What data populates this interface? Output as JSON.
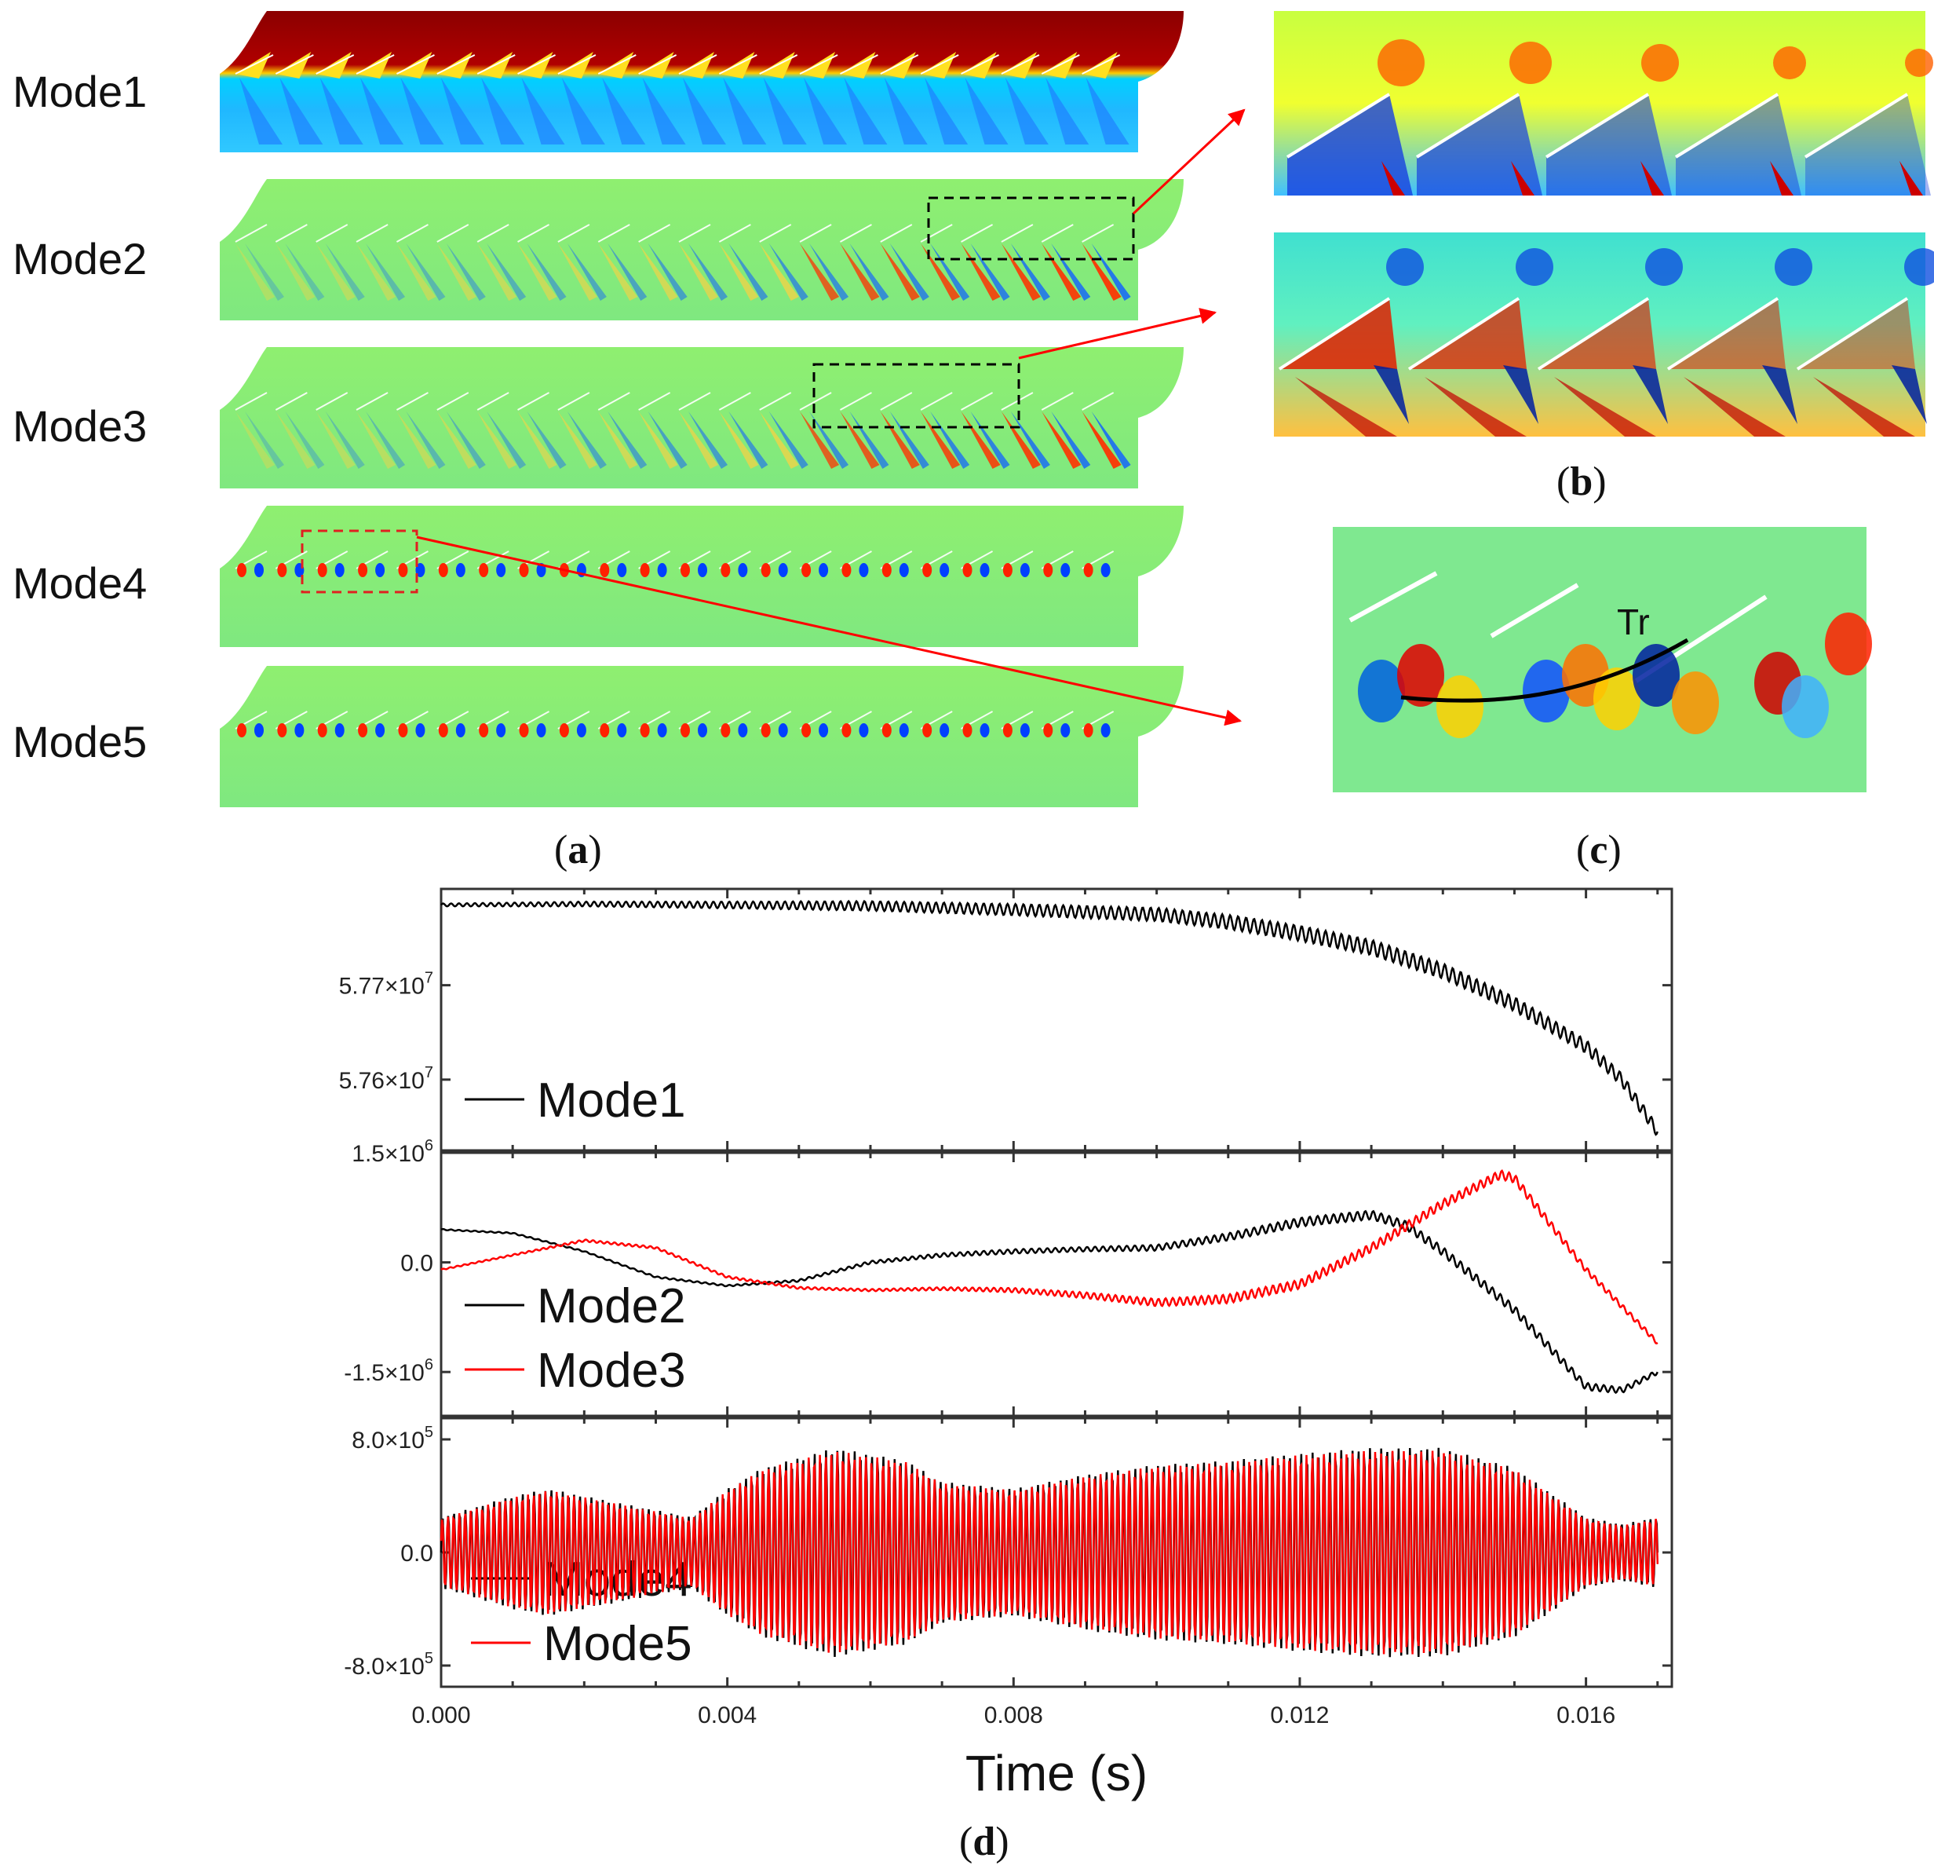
{
  "panel_a": {
    "caption": "a",
    "modes": [
      "Mode1",
      "Mode2",
      "Mode3",
      "Mode4",
      "Mode5"
    ]
  },
  "panel_b": {
    "caption": "b"
  },
  "panel_c": {
    "caption": "c",
    "annotation": "Tr"
  },
  "panel_d": {
    "caption": "d"
  },
  "colors": {
    "jet_low": "#00008f",
    "jet_mid": "#7fff7f",
    "jet_high": "#8f0000",
    "arrow": "#ff0000",
    "box_black": "#000000",
    "box_red": "#e02020"
  },
  "chart_data": [
    {
      "type": "line",
      "title": "",
      "xlabel": "",
      "ylabel": "",
      "xlim": [
        0,
        0.0172
      ],
      "ylim": [
        57525000,
        57802000
      ],
      "yticks": [
        57600000,
        57700000
      ],
      "ytick_labels": [
        "5.76×10^7",
        "5.77×10^7"
      ],
      "legend": "bottom-left",
      "series": [
        {
          "name": "Mode1",
          "color": "#000000",
          "x": [
            0,
            0.002,
            0.004,
            0.006,
            0.008,
            0.01,
            0.011,
            0.012,
            0.013,
            0.014,
            0.015,
            0.016,
            0.0165,
            0.017
          ],
          "y": [
            57785000,
            57786000,
            57785000,
            57784000,
            57780000,
            57775000,
            57767000,
            57755000,
            57740000,
            57715000,
            57680000,
            57635000,
            57600000,
            57545000
          ],
          "oscillation_amplitude": [
            1500,
            2500,
            3500,
            5000,
            6000,
            7000,
            7500,
            8000,
            8000,
            8000,
            7500,
            7000,
            6500,
            6000
          ]
        }
      ]
    },
    {
      "type": "line",
      "title": "",
      "xlabel": "",
      "ylabel": "",
      "xlim": [
        0,
        0.0172
      ],
      "ylim": [
        -2100000,
        1500000
      ],
      "yticks": [
        -1500000,
        0,
        1500000
      ],
      "ytick_labels": [
        "-1.5×10^6",
        "0.0",
        "1.5×10^6"
      ],
      "legend": "bottom-left",
      "series": [
        {
          "name": "Mode2",
          "color": "#000000",
          "x": [
            0,
            0.001,
            0.002,
            0.003,
            0.004,
            0.005,
            0.006,
            0.007,
            0.008,
            0.009,
            0.01,
            0.011,
            0.012,
            0.013,
            0.0135,
            0.014,
            0.015,
            0.016,
            0.0165,
            0.017
          ],
          "y": [
            450000,
            400000,
            150000,
            -200000,
            -320000,
            -250000,
            0,
            100000,
            150000,
            180000,
            200000,
            350000,
            550000,
            650000,
            500000,
            150000,
            -650000,
            -1700000,
            -1750000,
            -1500000
          ],
          "oscillation_amplitude": [
            8000,
            8000,
            8000,
            10000,
            10000,
            15000,
            20000,
            25000,
            30000,
            30000,
            40000,
            50000,
            60000,
            60000,
            60000,
            60000,
            60000,
            50000,
            40000,
            30000
          ]
        },
        {
          "name": "Mode3",
          "color": "#ff0000",
          "x": [
            0,
            0.001,
            0.002,
            0.003,
            0.004,
            0.005,
            0.006,
            0.007,
            0.008,
            0.009,
            0.01,
            0.011,
            0.012,
            0.013,
            0.014,
            0.0148,
            0.015,
            0.016,
            0.017
          ],
          "y": [
            -100000,
            100000,
            300000,
            200000,
            -200000,
            -350000,
            -380000,
            -360000,
            -380000,
            -450000,
            -550000,
            -500000,
            -300000,
            200000,
            800000,
            1200000,
            1150000,
            -100000,
            -1100000
          ],
          "oscillation_amplitude": [
            8000,
            10000,
            15000,
            15000,
            15000,
            15000,
            15000,
            20000,
            30000,
            40000,
            50000,
            60000,
            60000,
            60000,
            60000,
            60000,
            60000,
            40000,
            30000
          ]
        }
      ]
    },
    {
      "type": "line",
      "title": "",
      "xlabel": "Time (s)",
      "ylabel": "",
      "xlim": [
        0,
        0.0172
      ],
      "ylim": [
        -950000,
        950000
      ],
      "xticks": [
        0,
        0.004,
        0.008,
        0.012,
        0.016
      ],
      "xtick_labels": [
        "0.000",
        "0.004",
        "0.008",
        "0.012",
        "0.016"
      ],
      "yticks": [
        -800000,
        0,
        800000
      ],
      "ytick_labels": [
        "-8.0×10^5",
        "0.0",
        "8.0×10^5"
      ],
      "legend": "bottom-left",
      "oscillation_frequency_hz": 12500,
      "series": [
        {
          "name": "Mode4",
          "color": "#000000",
          "envelope_x": [
            0,
            0.001,
            0.0015,
            0.002,
            0.003,
            0.0035,
            0.004,
            0.0045,
            0.0055,
            0.0065,
            0.007,
            0.008,
            0.009,
            0.01,
            0.011,
            0.012,
            0.013,
            0.014,
            0.015,
            0.016,
            0.0165,
            0.017
          ],
          "envelope_y": [
            250000,
            400000,
            450000,
            400000,
            300000,
            250000,
            450000,
            600000,
            740000,
            650000,
            500000,
            450000,
            550000,
            620000,
            650000,
            700000,
            740000,
            740000,
            600000,
            250000,
            200000,
            250000
          ]
        },
        {
          "name": "Mode5",
          "color": "#ff0000",
          "envelope_x": [
            0,
            0.001,
            0.0015,
            0.002,
            0.003,
            0.0035,
            0.004,
            0.0045,
            0.0055,
            0.0065,
            0.007,
            0.008,
            0.009,
            0.01,
            0.011,
            0.012,
            0.013,
            0.014,
            0.015,
            0.016,
            0.0165,
            0.017
          ],
          "envelope_y": [
            240000,
            390000,
            440000,
            390000,
            290000,
            240000,
            440000,
            590000,
            720000,
            640000,
            490000,
            440000,
            540000,
            610000,
            640000,
            690000,
            720000,
            720000,
            590000,
            240000,
            190000,
            240000
          ]
        }
      ]
    }
  ]
}
